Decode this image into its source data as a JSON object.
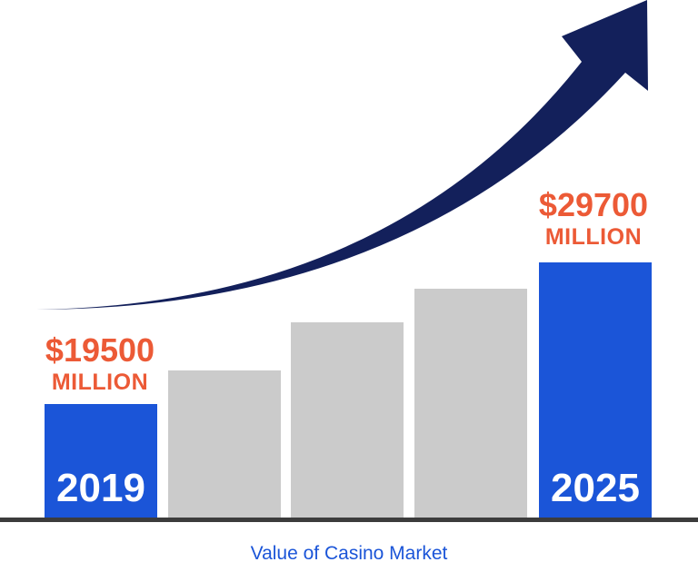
{
  "chart_data": {
    "type": "bar",
    "caption": "Value of Casino Market",
    "unit": "MILLION",
    "bars": [
      {
        "category": "2019",
        "value": 19500,
        "value_label": "$19500",
        "highlight": true
      },
      {
        "category": "",
        "value": null,
        "highlight": false
      },
      {
        "category": "",
        "value": null,
        "highlight": false
      },
      {
        "category": "",
        "value": null,
        "highlight": false
      },
      {
        "category": "2025",
        "value": 29700,
        "value_label": "$29700",
        "highlight": true
      }
    ],
    "trend": "upward-arrow"
  },
  "colors": {
    "highlight_bar": "#1b55d8",
    "plain_bar": "#cbcbcb",
    "arrow": "#13205b",
    "value_text": "#ec5a36",
    "baseline": "#3c3c3c",
    "caption_text": "#1b55d8"
  }
}
